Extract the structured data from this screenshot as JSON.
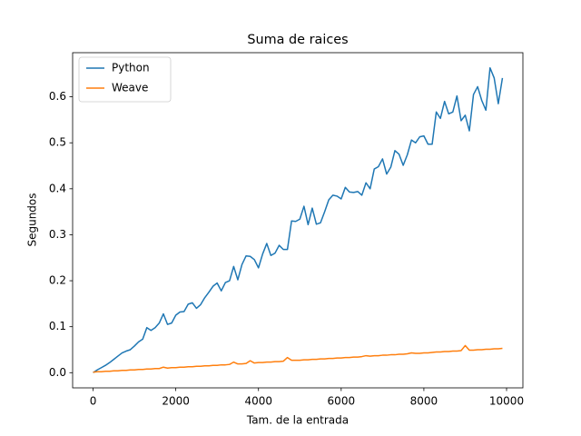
{
  "chart_data": {
    "type": "line",
    "title": "Suma de raices",
    "xlabel": "Tam. de la entrada",
    "ylabel": "Segundos",
    "x": [
      0,
      100,
      200,
      300,
      400,
      500,
      600,
      700,
      800,
      900,
      1000,
      1100,
      1200,
      1300,
      1400,
      1500,
      1600,
      1700,
      1800,
      1900,
      2000,
      2100,
      2200,
      2300,
      2400,
      2500,
      2600,
      2700,
      2800,
      2900,
      3000,
      3100,
      3200,
      3300,
      3400,
      3500,
      3600,
      3700,
      3800,
      3900,
      4000,
      4100,
      4200,
      4300,
      4400,
      4500,
      4600,
      4700,
      4800,
      4900,
      5000,
      5100,
      5200,
      5300,
      5400,
      5500,
      5600,
      5700,
      5800,
      5900,
      6000,
      6100,
      6200,
      6300,
      6400,
      6500,
      6600,
      6700,
      6800,
      6900,
      7000,
      7100,
      7200,
      7300,
      7400,
      7500,
      7600,
      7700,
      7800,
      7900,
      8000,
      8100,
      8200,
      8300,
      8400,
      8500,
      8600,
      8700,
      8800,
      8900,
      9000,
      9100,
      9200,
      9300,
      9400,
      9500,
      9600,
      9700,
      9800,
      9900
    ],
    "series": [
      {
        "name": "Python",
        "color": "#1f77b4",
        "values": [
          0.0,
          0.006,
          0.011,
          0.016,
          0.022,
          0.029,
          0.036,
          0.043,
          0.047,
          0.05,
          0.058,
          0.067,
          0.073,
          0.098,
          0.092,
          0.098,
          0.108,
          0.128,
          0.105,
          0.108,
          0.125,
          0.132,
          0.133,
          0.149,
          0.152,
          0.14,
          0.148,
          0.163,
          0.175,
          0.188,
          0.195,
          0.178,
          0.196,
          0.2,
          0.231,
          0.202,
          0.235,
          0.254,
          0.253,
          0.246,
          0.228,
          0.258,
          0.281,
          0.255,
          0.26,
          0.277,
          0.268,
          0.268,
          0.33,
          0.329,
          0.334,
          0.362,
          0.322,
          0.358,
          0.323,
          0.326,
          0.35,
          0.376,
          0.386,
          0.384,
          0.378,
          0.403,
          0.393,
          0.392,
          0.394,
          0.386,
          0.413,
          0.4,
          0.443,
          0.448,
          0.465,
          0.432,
          0.447,
          0.483,
          0.475,
          0.451,
          0.474,
          0.506,
          0.5,
          0.513,
          0.515,
          0.497,
          0.497,
          0.567,
          0.553,
          0.59,
          0.563,
          0.567,
          0.602,
          0.548,
          0.56,
          0.526,
          0.605,
          0.622,
          0.592,
          0.571,
          0.663,
          0.641,
          0.585,
          0.641
        ]
      },
      {
        "name": "Weave",
        "color": "#ff7f0e",
        "values": [
          0.001,
          0.002,
          0.002,
          0.003,
          0.003,
          0.004,
          0.004,
          0.005,
          0.005,
          0.006,
          0.006,
          0.007,
          0.007,
          0.008,
          0.008,
          0.009,
          0.009,
          0.012,
          0.01,
          0.011,
          0.011,
          0.012,
          0.012,
          0.013,
          0.013,
          0.014,
          0.014,
          0.015,
          0.015,
          0.016,
          0.016,
          0.017,
          0.017,
          0.018,
          0.023,
          0.019,
          0.019,
          0.02,
          0.026,
          0.021,
          0.022,
          0.022,
          0.023,
          0.023,
          0.024,
          0.024,
          0.025,
          0.033,
          0.027,
          0.027,
          0.027,
          0.028,
          0.028,
          0.029,
          0.029,
          0.03,
          0.03,
          0.031,
          0.031,
          0.032,
          0.032,
          0.033,
          0.033,
          0.034,
          0.034,
          0.035,
          0.037,
          0.036,
          0.037,
          0.037,
          0.038,
          0.038,
          0.039,
          0.039,
          0.04,
          0.04,
          0.041,
          0.043,
          0.042,
          0.042,
          0.043,
          0.043,
          0.044,
          0.045,
          0.045,
          0.046,
          0.046,
          0.047,
          0.047,
          0.048,
          0.059,
          0.049,
          0.049,
          0.05,
          0.05,
          0.051,
          0.051,
          0.052,
          0.052,
          0.053
        ]
      }
    ],
    "xlim": [
      -495,
      10395
    ],
    "ylim": [
      -0.033,
      0.696
    ],
    "xticks": [
      0,
      2000,
      4000,
      6000,
      8000,
      10000
    ],
    "yticks": [
      {
        "value": 0,
        "label": "0.0"
      },
      {
        "value": 0.1,
        "label": "0.1"
      },
      {
        "value": 0.2,
        "label": "0.2"
      },
      {
        "value": 0.3,
        "label": "0.3"
      },
      {
        "value": 0.4,
        "label": "0.4"
      },
      {
        "value": 0.5,
        "label": "0.5"
      },
      {
        "value": 0.6,
        "label": "0.6"
      }
    ],
    "legend": "upper left",
    "grid": false
  }
}
